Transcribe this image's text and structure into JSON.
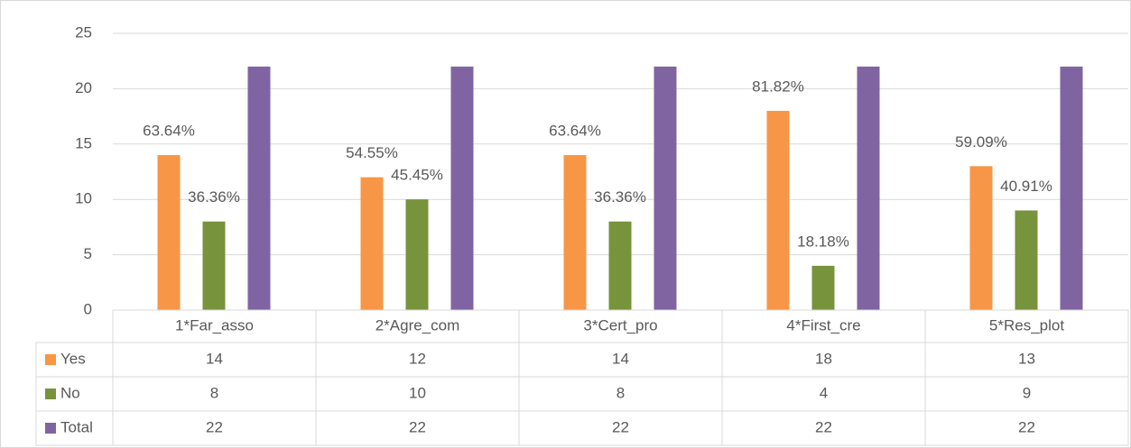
{
  "chart_data": {
    "type": "bar",
    "categories": [
      "1*Far_asso",
      "2*Agre_com",
      "3*Cert_pro",
      "4*First_cre",
      "5*Res_plot"
    ],
    "series": [
      {
        "name": "Yes",
        "color": "#f79646",
        "values": [
          14,
          12,
          14,
          18,
          13
        ],
        "labels": [
          "63.64%",
          "54.55%",
          "63.64%",
          "81.82%",
          "59.09%"
        ]
      },
      {
        "name": "No",
        "color": "#77933c",
        "values": [
          8,
          10,
          8,
          4,
          9
        ],
        "labels": [
          "36.36%",
          "45.45%",
          "36.36%",
          "18.18%",
          "40.91%"
        ]
      },
      {
        "name": "Total",
        "color": "#8064a2",
        "values": [
          22,
          22,
          22,
          22,
          22
        ]
      }
    ],
    "ylim": [
      0,
      25
    ],
    "yticks": [
      0,
      5,
      10,
      15,
      20,
      25
    ],
    "grid": true,
    "data_table": true
  }
}
